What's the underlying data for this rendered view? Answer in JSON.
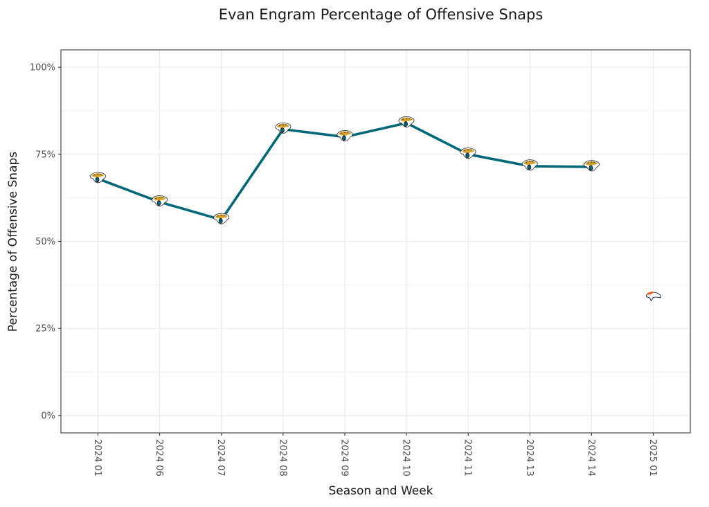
{
  "chart_data": {
    "type": "line",
    "title": "Evan Engram Percentage of Offensive Snaps",
    "xlabel": "Season and Week",
    "ylabel": "Percentage of Offensive Snaps",
    "categories": [
      "2024 01",
      "2024 06",
      "2024 07",
      "2024 08",
      "2024 09",
      "2024 10",
      "2024 11",
      "2024 13",
      "2024 14",
      "2025 01"
    ],
    "yticks": [
      0,
      25,
      50,
      75,
      100
    ],
    "ytick_labels": [
      "0%",
      "25%",
      "50%",
      "75%",
      "100%"
    ],
    "ylim": [
      -5,
      105
    ],
    "grid": true,
    "series": [
      {
        "name": "JAX",
        "team": "Jacksonville Jaguars",
        "marker": "jaguars-logo-icon",
        "color": "#006778",
        "connected": true,
        "categories": [
          "2024 01",
          "2024 06",
          "2024 07",
          "2024 08",
          "2024 09",
          "2024 10",
          "2024 11",
          "2024 13",
          "2024 14"
        ],
        "values": [
          68.0,
          61.3,
          56.2,
          82.2,
          80.0,
          84.0,
          75.0,
          71.6,
          71.4
        ]
      },
      {
        "name": "DEN",
        "team": "Denver Broncos",
        "marker": "broncos-logo-icon",
        "color": "#FB4F14",
        "connected": false,
        "categories": [
          "2025 01"
        ],
        "values": [
          34.3
        ]
      }
    ]
  }
}
